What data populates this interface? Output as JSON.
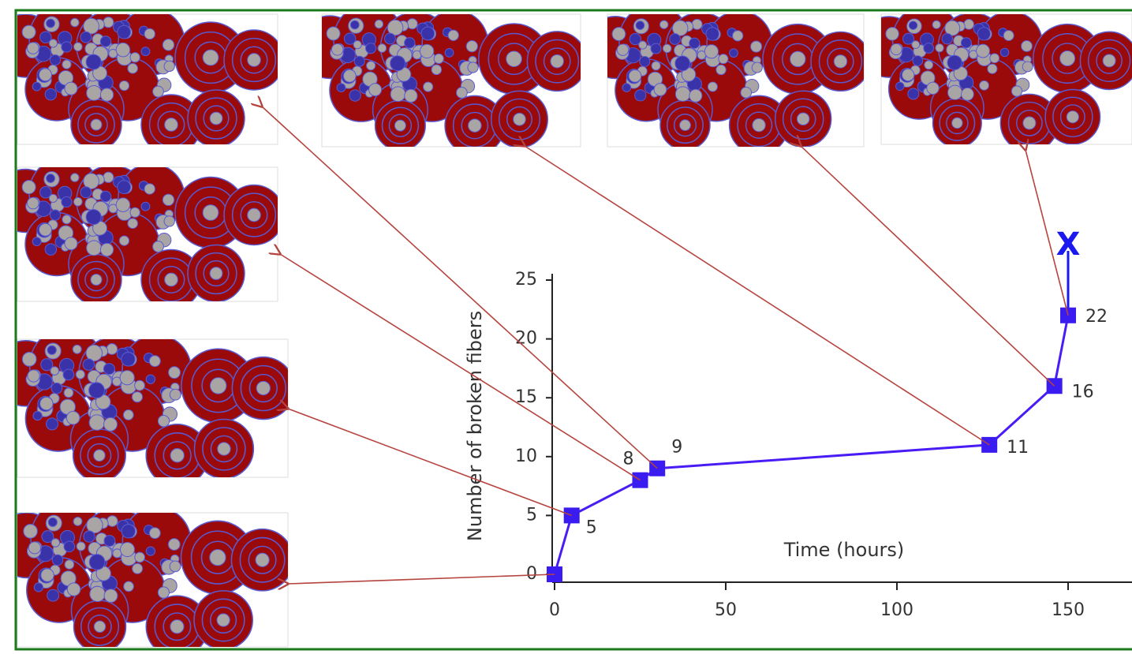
{
  "chart_data": {
    "type": "line",
    "x_label": "Time (hours)",
    "y_label": "Number of broken fibers",
    "annotation": "X",
    "series": [
      {
        "name": "broken fibers",
        "color": "#4a1cf5",
        "x": [
          0,
          5,
          25,
          30,
          127,
          146,
          150
        ],
        "values": [
          0,
          5,
          8,
          9,
          11,
          16,
          22
        ],
        "value_labels": [
          null,
          "5",
          "8",
          "9",
          "11",
          "16",
          "22"
        ]
      }
    ],
    "xlim": [
      0,
      168
    ],
    "xticks": [
      0,
      50,
      100,
      150
    ],
    "ylim": [
      0,
      25
    ],
    "yticks": [
      0,
      5,
      10,
      15,
      20,
      25
    ]
  }
}
